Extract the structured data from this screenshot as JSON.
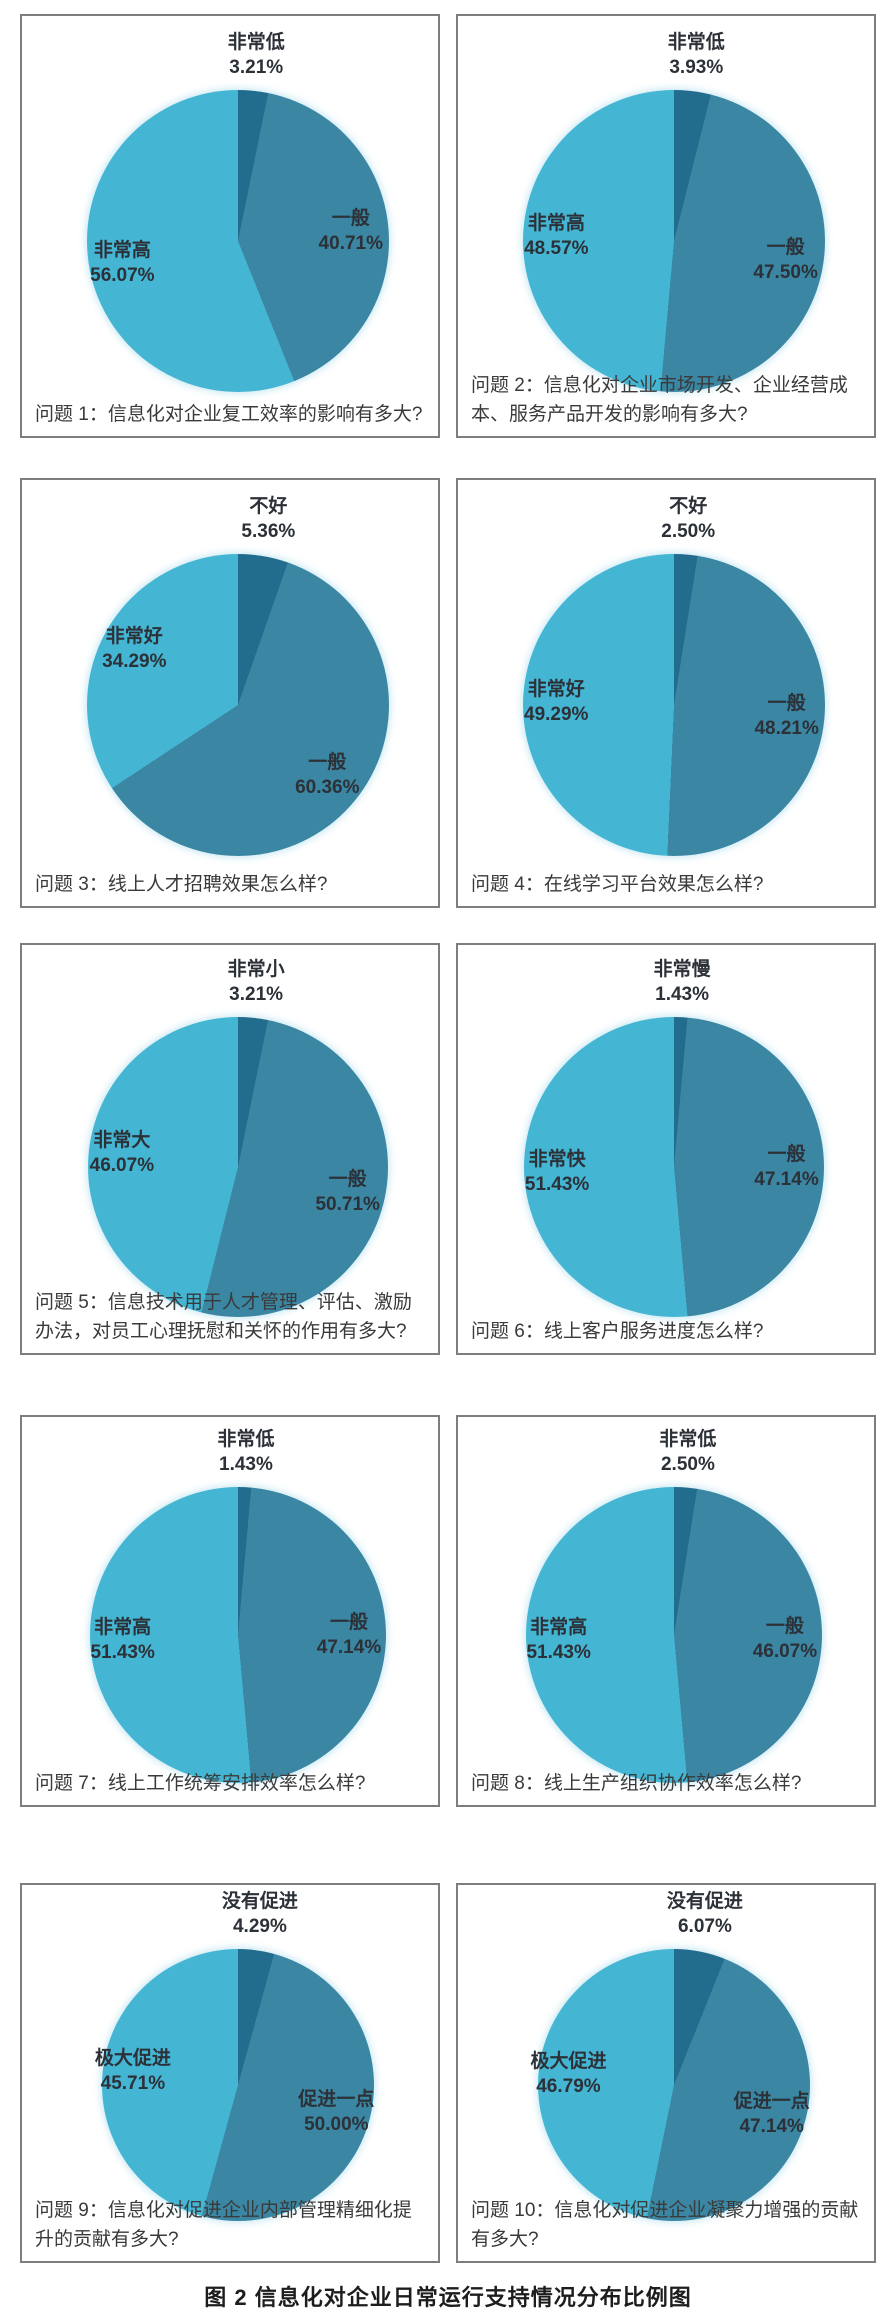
{
  "figure_caption": "图 2 信息化对企业日常运行支持情况分布比例图",
  "colors": {
    "negative": "#226d8d",
    "neutral": "#3a86a3",
    "positive": "#44b5d3",
    "card_border": "#7e7e7e",
    "label_text": "#2c3138"
  },
  "chart_data": [
    {
      "type": "pie",
      "question": "问题 1：信息化对企业复工效率的影响有多大?",
      "slices": [
        {
          "label": "非常低",
          "value": 3.21,
          "display": "3.21%",
          "role": "negative"
        },
        {
          "label": "一般",
          "value": 40.71,
          "display": "40.71%",
          "role": "neutral"
        },
        {
          "label": "非常高",
          "value": 56.07,
          "display": "56.07%",
          "role": "positive"
        }
      ]
    },
    {
      "type": "pie",
      "question": "问题 2：信息化对企业市场开发、企业经营成本、服务产品开发的影响有多大?",
      "slices": [
        {
          "label": "非常低",
          "value": 3.93,
          "display": "3.93%",
          "role": "negative"
        },
        {
          "label": "一般",
          "value": 47.5,
          "display": "47.50%",
          "role": "neutral"
        },
        {
          "label": "非常高",
          "value": 48.57,
          "display": "48.57%",
          "role": "positive"
        }
      ]
    },
    {
      "type": "pie",
      "question": "问题 3：线上人才招聘效果怎么样?",
      "slices": [
        {
          "label": "不好",
          "value": 5.36,
          "display": "5.36%",
          "role": "negative"
        },
        {
          "label": "一般",
          "value": 60.36,
          "display": "60.36%",
          "role": "neutral"
        },
        {
          "label": "非常好",
          "value": 34.29,
          "display": "34.29%",
          "role": "positive"
        }
      ]
    },
    {
      "type": "pie",
      "question": "问题 4：在线学习平台效果怎么样?",
      "slices": [
        {
          "label": "不好",
          "value": 2.5,
          "display": "2.50%",
          "role": "negative"
        },
        {
          "label": "一般",
          "value": 48.21,
          "display": "48.21%",
          "role": "neutral"
        },
        {
          "label": "非常好",
          "value": 49.29,
          "display": "49.29%",
          "role": "positive"
        }
      ]
    },
    {
      "type": "pie",
      "question": "问题 5：信息技术用于人才管理、评估、激励办法，对员工心理抚慰和关怀的作用有多大?",
      "slices": [
        {
          "label": "非常小",
          "value": 3.21,
          "display": "3.21%",
          "role": "negative"
        },
        {
          "label": "一般",
          "value": 50.71,
          "display": "50.71%",
          "role": "neutral"
        },
        {
          "label": "非常大",
          "value": 46.07,
          "display": "46.07%",
          "role": "positive"
        }
      ]
    },
    {
      "type": "pie",
      "question": "问题 6：线上客户服务进度怎么样?",
      "slices": [
        {
          "label": "非常慢",
          "value": 1.43,
          "display": "1.43%",
          "role": "negative"
        },
        {
          "label": "一般",
          "value": 47.14,
          "display": "47.14%",
          "role": "neutral"
        },
        {
          "label": "非常快",
          "value": 51.43,
          "display": "51.43%",
          "role": "positive"
        }
      ]
    },
    {
      "type": "pie",
      "question": "问题 7：线上工作统筹安排效率怎么样?",
      "slices": [
        {
          "label": "非常低",
          "value": 1.43,
          "display": "1.43%",
          "role": "negative"
        },
        {
          "label": "一般",
          "value": 47.14,
          "display": "47.14%",
          "role": "neutral"
        },
        {
          "label": "非常高",
          "value": 51.43,
          "display": "51.43%",
          "role": "positive"
        }
      ]
    },
    {
      "type": "pie",
      "question": "问题 8：线上生产组织协作效率怎么样?",
      "slices": [
        {
          "label": "非常低",
          "value": 2.5,
          "display": "2.50%",
          "role": "negative"
        },
        {
          "label": "一般",
          "value": 46.07,
          "display": "46.07%",
          "role": "neutral"
        },
        {
          "label": "非常高",
          "value": 51.43,
          "display": "51.43%",
          "role": "positive"
        }
      ]
    },
    {
      "type": "pie",
      "question": "问题 9：信息化对促进企业内部管理精细化提升的贡献有多大?",
      "slices": [
        {
          "label": "没有促进",
          "value": 4.29,
          "display": "4.29%",
          "role": "negative"
        },
        {
          "label": "促进一点",
          "value": 50.0,
          "display": "50.00%",
          "role": "neutral"
        },
        {
          "label": "极大促进",
          "value": 45.71,
          "display": "45.71%",
          "role": "positive"
        }
      ]
    },
    {
      "type": "pie",
      "question": "问题 10：信息化对促进企业凝聚力增强的贡献有多大?",
      "slices": [
        {
          "label": "没有促进",
          "value": 6.07,
          "display": "6.07%",
          "role": "negative"
        },
        {
          "label": "促进一点",
          "value": 47.14,
          "display": "47.14%",
          "role": "neutral"
        },
        {
          "label": "极大促进",
          "value": 46.79,
          "display": "46.79%",
          "role": "positive"
        }
      ]
    }
  ]
}
